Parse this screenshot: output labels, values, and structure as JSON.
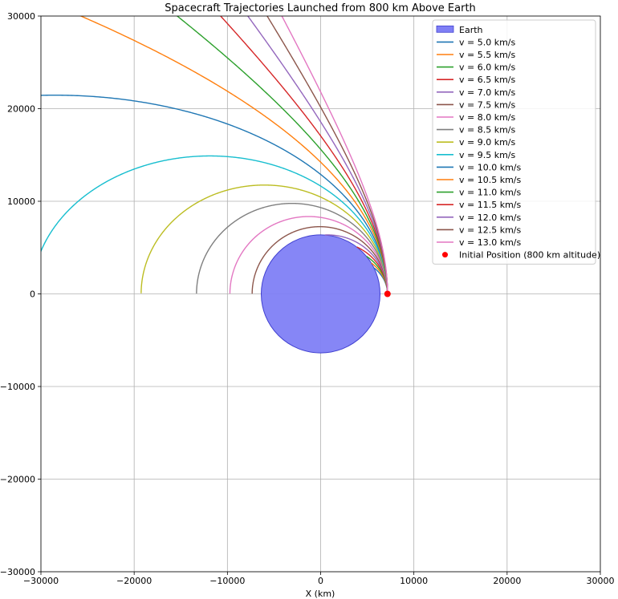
{
  "chart_data": {
    "type": "line",
    "title": "Spacecraft Trajectories Launched from 800 km Above Earth",
    "xlabel": "X (km)",
    "ylabel": "",
    "xlim": [
      -30000,
      30000
    ],
    "ylim": [
      -30000,
      30000
    ],
    "xticks": [
      -30000,
      -20000,
      -10000,
      0,
      10000,
      20000,
      30000
    ],
    "yticks": [
      -30000,
      -20000,
      -10000,
      0,
      10000,
      20000,
      30000
    ],
    "xtick_labels": [
      "−30000",
      "−20000",
      "−10000",
      "0",
      "10000",
      "20000",
      "30000"
    ],
    "ytick_labels": [
      "−30000",
      "−20000",
      "−10000",
      "0",
      "10000",
      "20000",
      "30000"
    ],
    "grid": true,
    "legend_position": "top-right",
    "earth": {
      "label": "Earth",
      "center": [
        0,
        0
      ],
      "radius": 6371,
      "color": "#7f7ff5"
    },
    "initial_position": {
      "label": "Initial Position (800 km altitude)",
      "x": 7171,
      "y": 0,
      "color": "#ff0000"
    },
    "series": [
      {
        "name": "v = 5.0 km/s",
        "v": 5.0,
        "color": "#1f77b4"
      },
      {
        "name": "v = 5.5 km/s",
        "v": 5.5,
        "color": "#ff7f0e"
      },
      {
        "name": "v = 6.0 km/s",
        "v": 6.0,
        "color": "#2ca02c"
      },
      {
        "name": "v = 6.5 km/s",
        "v": 6.5,
        "color": "#d62728"
      },
      {
        "name": "v = 7.0 km/s",
        "v": 7.0,
        "color": "#9467bd"
      },
      {
        "name": "v = 7.5 km/s",
        "v": 7.5,
        "color": "#8c564b"
      },
      {
        "name": "v = 8.0 km/s",
        "v": 8.0,
        "color": "#e377c2"
      },
      {
        "name": "v = 8.5 km/s",
        "v": 8.5,
        "color": "#7f7f7f"
      },
      {
        "name": "v = 9.0 km/s",
        "v": 9.0,
        "color": "#bcbd22"
      },
      {
        "name": "v = 9.5 km/s",
        "v": 9.5,
        "color": "#17becf"
      },
      {
        "name": "v = 10.0 km/s",
        "v": 10.0,
        "color": "#1f77b4"
      },
      {
        "name": "v = 10.5 km/s",
        "v": 10.5,
        "color": "#ff7f0e"
      },
      {
        "name": "v = 11.0 km/s",
        "v": 11.0,
        "color": "#2ca02c"
      },
      {
        "name": "v = 11.5 km/s",
        "v": 11.5,
        "color": "#d62728"
      },
      {
        "name": "v = 12.0 km/s",
        "v": 12.0,
        "color": "#9467bd"
      },
      {
        "name": "v = 12.5 km/s",
        "v": 12.5,
        "color": "#8c564b"
      },
      {
        "name": "v = 13.0 km/s",
        "v": 13.0,
        "color": "#e377c2"
      }
    ]
  }
}
